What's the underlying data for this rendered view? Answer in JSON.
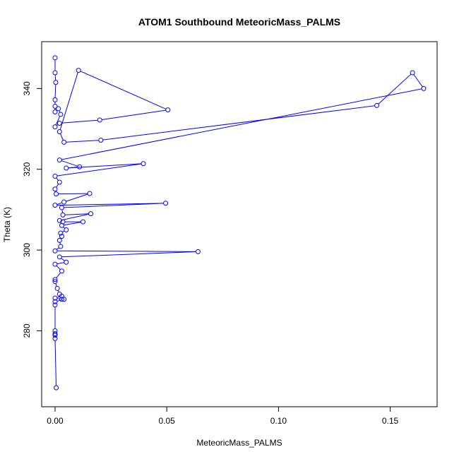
{
  "chart_data": {
    "type": "scatter",
    "title": "ATOM1 Southbound MeteoricMass_PALMS",
    "xlabel": "MeteoricMass_PALMS",
    "ylabel": "Theta (K)",
    "xlim": [
      -0.006,
      0.171
    ],
    "ylim": [
      261.2,
      351.6
    ],
    "x_ticks": [
      0.0,
      0.05,
      0.1,
      0.15
    ],
    "x_tick_labels": [
      "0.00",
      "0.05",
      "0.10",
      "0.15"
    ],
    "y_ticks": [
      280,
      300,
      320,
      340
    ],
    "y_tick_labels": [
      "280",
      "300",
      "320",
      "340"
    ],
    "grid": false,
    "legend": "none",
    "marker": "open-circle",
    "connected": true,
    "color": "#0000ff",
    "series": [
      {
        "points": [
          [
            0.0,
            347.6
          ],
          [
            0.0,
            343.9
          ],
          [
            0.0003,
            341.5
          ],
          [
            0.0,
            337.2
          ],
          [
            0.0,
            335.6
          ],
          [
            0.0,
            334.2
          ],
          [
            0.0015,
            335.0
          ],
          [
            0.0025,
            333.6
          ],
          [
            0.0,
            330.5
          ],
          [
            0.002,
            331.4
          ],
          [
            0.02,
            332.2
          ],
          [
            0.0505,
            334.7
          ],
          [
            0.0105,
            344.5
          ],
          [
            0.002,
            329.3
          ],
          [
            0.004,
            326.7
          ],
          [
            0.0205,
            327.2
          ],
          [
            0.144,
            335.8
          ],
          [
            0.16,
            343.9
          ],
          [
            0.165,
            340.0
          ],
          [
            0.002,
            322.3
          ],
          [
            0.011,
            320.6
          ],
          [
            0.005,
            320.3
          ],
          [
            0.0395,
            321.4
          ],
          [
            0.0,
            318.3
          ],
          [
            0.002,
            316.8
          ],
          [
            0.0,
            315.1
          ],
          [
            0.0005,
            313.9
          ],
          [
            0.0155,
            314.0
          ],
          [
            0.004,
            311.9
          ],
          [
            0.0,
            311.1
          ],
          [
            0.0495,
            311.6
          ],
          [
            0.003,
            310.5
          ],
          [
            0.0035,
            308.7
          ],
          [
            0.016,
            309.0
          ],
          [
            0.002,
            307.3
          ],
          [
            0.0035,
            307.0
          ],
          [
            0.0125,
            307.0
          ],
          [
            0.003,
            306.1
          ],
          [
            0.005,
            305.0
          ],
          [
            0.0025,
            304.2
          ],
          [
            0.003,
            303.4
          ],
          [
            0.002,
            302.4
          ],
          [
            0.0025,
            300.9
          ],
          [
            0.0,
            299.8
          ],
          [
            0.064,
            299.6
          ],
          [
            0.002,
            298.3
          ],
          [
            0.005,
            297.0
          ],
          [
            0.0,
            296.5
          ],
          [
            0.003,
            294.8
          ],
          [
            0.0,
            292.7
          ],
          [
            0.0,
            292.2
          ],
          [
            0.001,
            290.5
          ],
          [
            0.002,
            289.1
          ],
          [
            0.003,
            288.6
          ],
          [
            0.0,
            288.1
          ],
          [
            0.003,
            287.8
          ],
          [
            0.004,
            287.8
          ],
          [
            0.0,
            287.2
          ],
          [
            0.0,
            286.4
          ],
          [
            0.0,
            280.0
          ],
          [
            0.0,
            279.3
          ],
          [
            0.0,
            278.9
          ],
          [
            0.0,
            278.1
          ],
          [
            0.0005,
            265.9
          ]
        ]
      }
    ]
  }
}
